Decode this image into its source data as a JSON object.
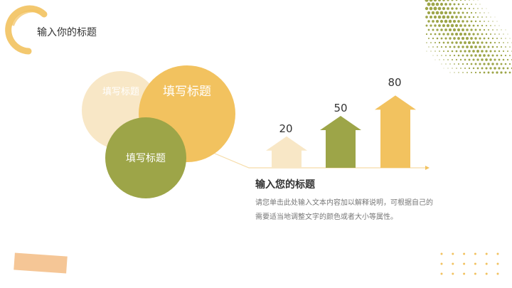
{
  "header": {
    "title": "输入你的标题"
  },
  "circles": [
    {
      "label": "填写标题",
      "color": "#f8e7c6"
    },
    {
      "label": "填写标题",
      "color": "#f2c25f"
    },
    {
      "label": "填写标题",
      "color": "#9da548"
    }
  ],
  "chart_data": {
    "type": "bar",
    "categories": [
      "",
      "",
      ""
    ],
    "values": [
      20,
      50,
      80
    ],
    "colors": [
      "#f8e7c6",
      "#9da548",
      "#f2c25f"
    ],
    "bar_shape": "arrow-up"
  },
  "text_block": {
    "title": "输入您的标题",
    "description": "请您单击此处输入文本内容加以解释说明，可根据自己的需要适当地调整文字的颜色或者大小等属性。"
  },
  "colors": {
    "accent_yellow": "#f2c25f",
    "accent_green": "#9da548",
    "tape": "#f5c696"
  }
}
